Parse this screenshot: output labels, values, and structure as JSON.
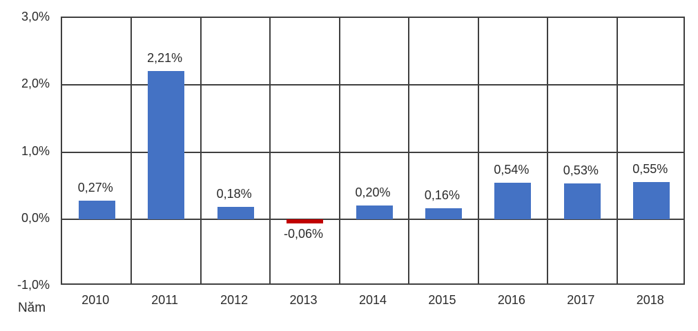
{
  "chart_data": {
    "type": "bar",
    "title": "",
    "xlabel": "Năm",
    "ylabel": "",
    "categories": [
      "2010",
      "2011",
      "2012",
      "2013",
      "2014",
      "2015",
      "2016",
      "2017",
      "2018"
    ],
    "values": [
      0.27,
      2.21,
      0.18,
      -0.06,
      0.2,
      0.16,
      0.54,
      0.53,
      0.55
    ],
    "data_labels": [
      "0,27%",
      "2,21%",
      "0,18%",
      "-0,06%",
      "0,20%",
      "0,16%",
      "0,54%",
      "0,53%",
      "0,55%"
    ],
    "y_ticks": [
      {
        "value": 3,
        "label": "3,0%"
      },
      {
        "value": 2,
        "label": "2,0%"
      },
      {
        "value": 1,
        "label": "1,0%"
      },
      {
        "value": 0,
        "label": "0,0%"
      },
      {
        "value": -1,
        "label": "-1,0%"
      }
    ],
    "ylim": [
      -1,
      3
    ],
    "grid": true,
    "legend": "none",
    "colors": {
      "positive_bar": "#4472C4",
      "negative_bar": "#C00000",
      "gridline": "#3F3F3F",
      "text": "#2B2B2B",
      "background": "#FFFFFF"
    }
  }
}
